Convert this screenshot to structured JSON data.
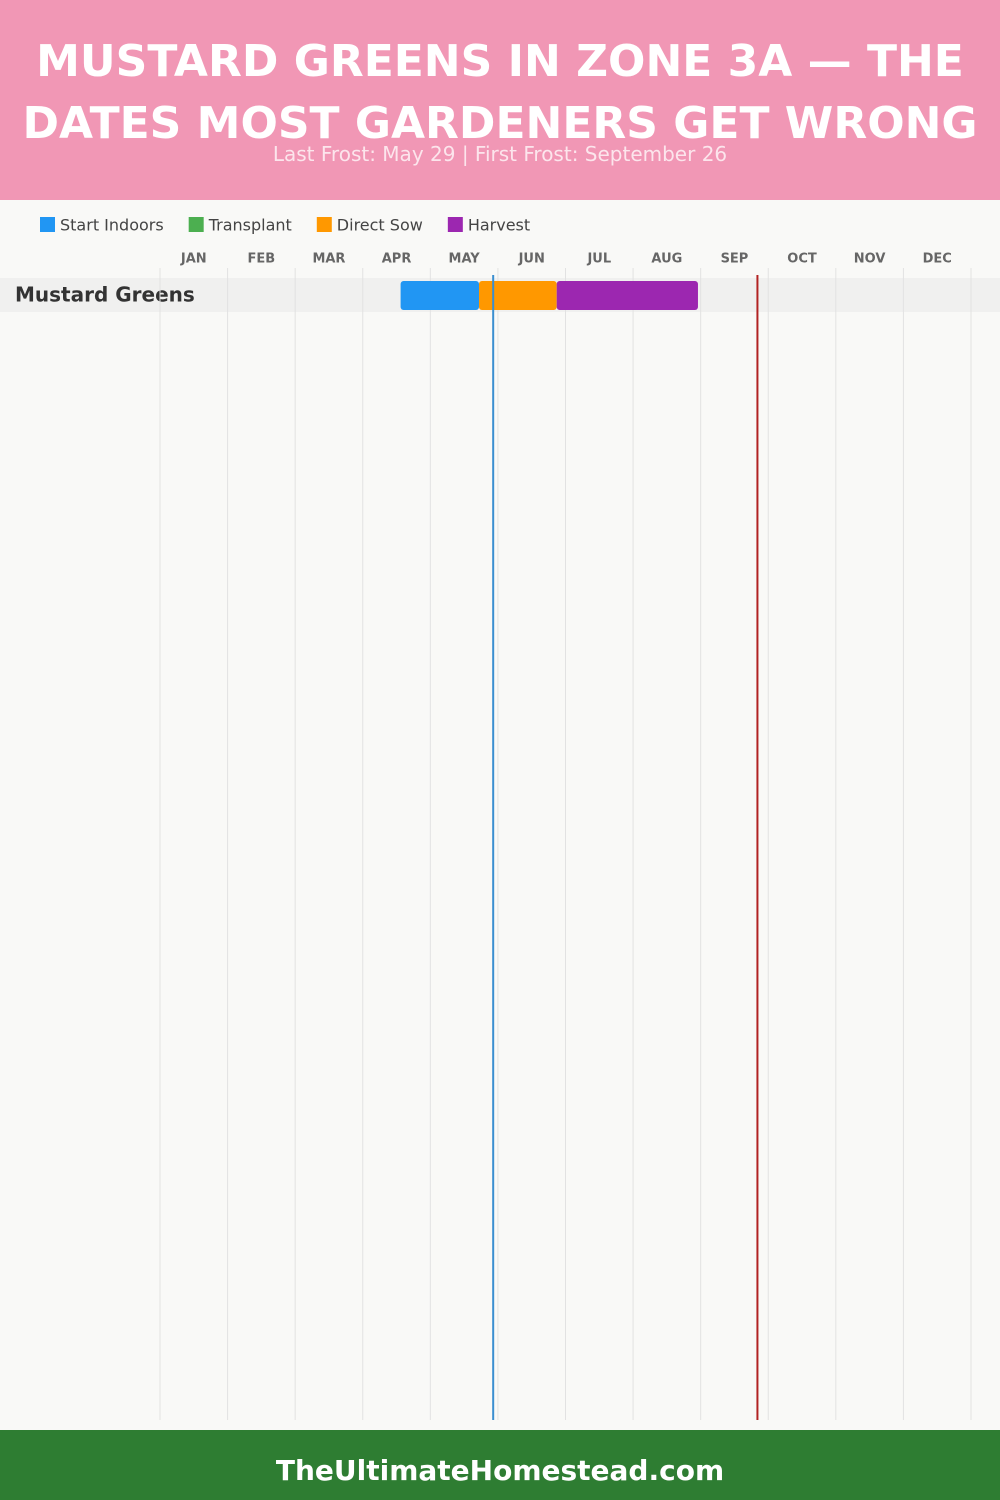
{
  "chart_data": {
    "type": "gantt",
    "title": "MUSTARD GREENS IN ZONE 3A — THE DATES MOST GARDENERS GET WRONG",
    "subtitle": "Last Frost: May 29 | First Frost: September 26",
    "categories": [
      "Mustard Greens"
    ],
    "series": [
      {
        "name": "Start Indoors",
        "color": "#2196f3",
        "values": [
          [
            3.56,
            4.72
          ]
        ]
      },
      {
        "name": "Transplant",
        "color": "#4caf50",
        "values": [
          null
        ]
      },
      {
        "name": "Direct Sow",
        "color": "#ff9800",
        "values": [
          [
            4.72,
            5.87
          ]
        ]
      },
      {
        "name": "Harvest",
        "color": "#9c27b0",
        "values": [
          [
            5.87,
            7.96
          ]
        ]
      }
    ],
    "xlim": [
      0,
      12
    ],
    "xticks": [
      {
        "value": 0,
        "label": "JAN"
      },
      {
        "value": 1,
        "label": "FEB"
      },
      {
        "value": 2,
        "label": "MAR"
      },
      {
        "value": 3,
        "label": "APR"
      },
      {
        "value": 4,
        "label": "MAY"
      },
      {
        "value": 5,
        "label": "JUN"
      },
      {
        "value": 6,
        "label": "JUL"
      },
      {
        "value": 7,
        "label": "AUG"
      },
      {
        "value": 8,
        "label": "SEP"
      },
      {
        "value": 9,
        "label": "OCT"
      },
      {
        "value": 10,
        "label": "NOV"
      },
      {
        "value": 11,
        "label": "DEC"
      }
    ],
    "grid": true,
    "frost_lines": [
      {
        "value": 4.93,
        "color": "#3a8fd0"
      },
      {
        "value": 8.84,
        "color": "#b22222"
      }
    ],
    "footer": "TheUltimateHomestead.com"
  }
}
